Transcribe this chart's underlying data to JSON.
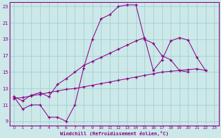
{
  "xlabel": "Windchill (Refroidissement éolien,°C)",
  "background_color": "#cce8e8",
  "grid_color": "#99cccc",
  "line_color": "#880088",
  "xlim": [
    -0.5,
    23.5
  ],
  "ylim": [
    8.5,
    23.5
  ],
  "xticks": [
    0,
    1,
    2,
    3,
    4,
    5,
    6,
    7,
    8,
    9,
    10,
    11,
    12,
    13,
    14,
    15,
    16,
    17,
    18,
    19,
    20,
    21,
    22,
    23
  ],
  "yticks": [
    9,
    11,
    13,
    15,
    17,
    19,
    21,
    23
  ],
  "line1_x": [
    0,
    1,
    2,
    3,
    4,
    5,
    6,
    7,
    8,
    9,
    10,
    11,
    12,
    13,
    14,
    15,
    16,
    17,
    18,
    19,
    20
  ],
  "line1_y": [
    12.0,
    10.5,
    11.0,
    11.0,
    9.5,
    9.5,
    9.0,
    11.0,
    15.5,
    19.0,
    21.5,
    22.0,
    23.0,
    23.2,
    23.2,
    19.0,
    18.5,
    17.0,
    16.5,
    15.2,
    15.0
  ],
  "line2_x": [
    0,
    1,
    2,
    3,
    4,
    5,
    6,
    7,
    8,
    9,
    10,
    11,
    12,
    13,
    14,
    15,
    16,
    17,
    18,
    19,
    20,
    21,
    22
  ],
  "line2_y": [
    12.0,
    11.5,
    12.2,
    12.5,
    12.0,
    13.5,
    14.2,
    15.0,
    15.8,
    16.3,
    16.8,
    17.3,
    17.8,
    18.3,
    18.8,
    19.2,
    15.2,
    16.5,
    18.8,
    19.2,
    18.9,
    16.8,
    15.2
  ],
  "line3_x": [
    0,
    1,
    2,
    3,
    4,
    5,
    6,
    7,
    8,
    9,
    10,
    11,
    12,
    13,
    14,
    15,
    16,
    17,
    18,
    19,
    20,
    21,
    22
  ],
  "line3_y": [
    11.8,
    11.9,
    12.1,
    12.3,
    12.5,
    12.7,
    12.9,
    13.0,
    13.2,
    13.4,
    13.6,
    13.8,
    14.0,
    14.2,
    14.4,
    14.6,
    14.8,
    15.0,
    15.1,
    15.2,
    15.3,
    15.4,
    15.2
  ]
}
